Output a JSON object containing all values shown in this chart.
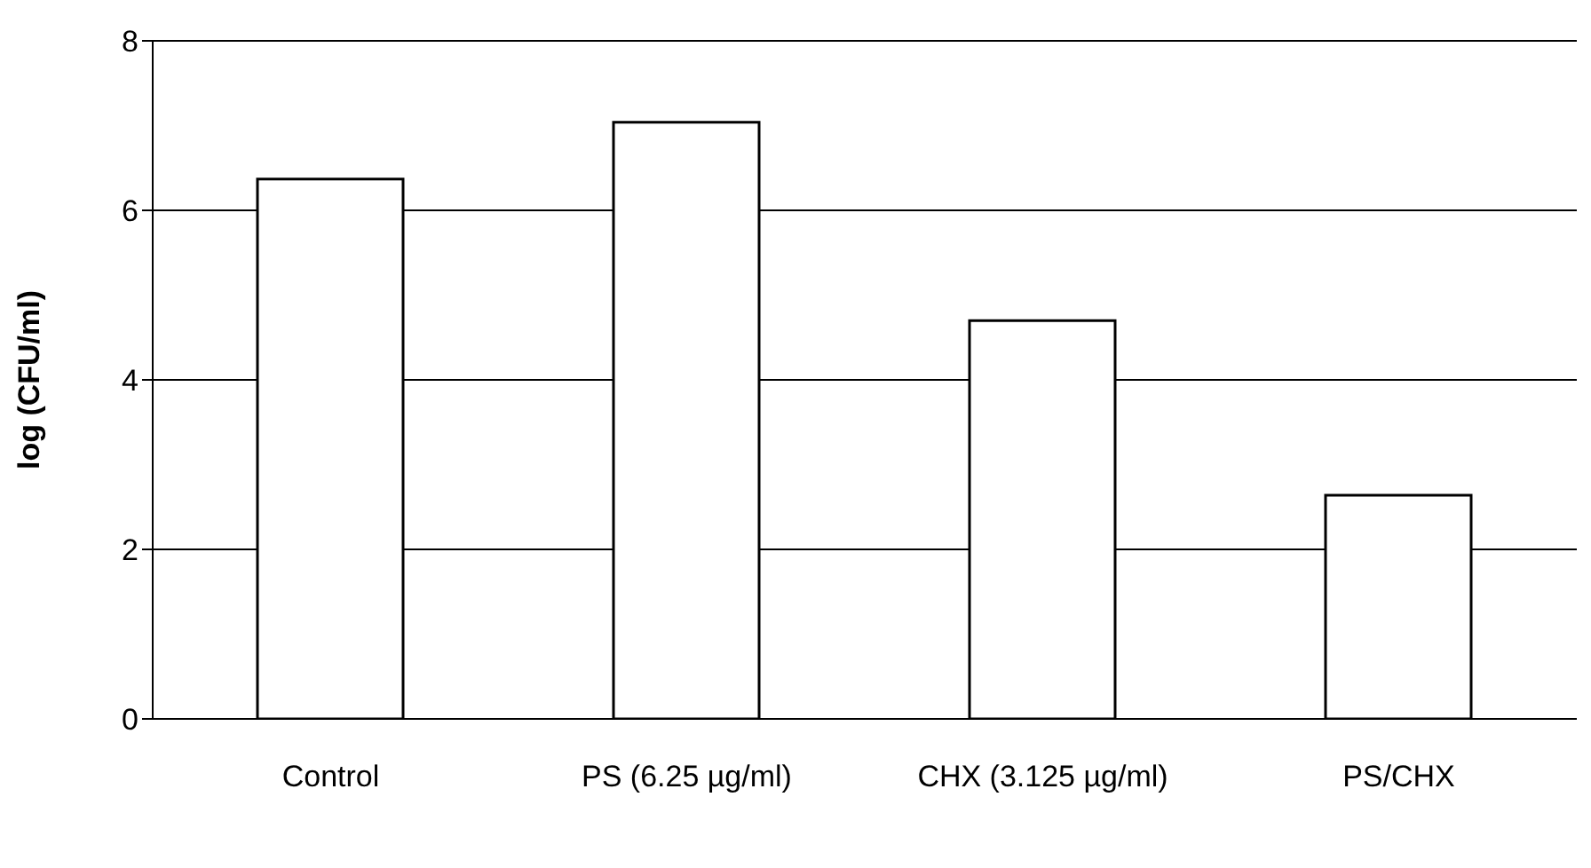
{
  "chart_data": {
    "type": "bar",
    "ylabel": "log (CFU/ml)",
    "categories": [
      "Control",
      "PS (6.25 µg/ml)",
      "CHX (3.125 µg/ml)",
      "PS/CHX"
    ],
    "values": [
      6.37,
      7.04,
      4.7,
      2.64
    ],
    "color": "#ffffff",
    "ylim": [
      0,
      8
    ],
    "yticks": [
      0,
      2,
      4,
      6,
      8
    ],
    "grid": "y",
    "legend": false
  }
}
